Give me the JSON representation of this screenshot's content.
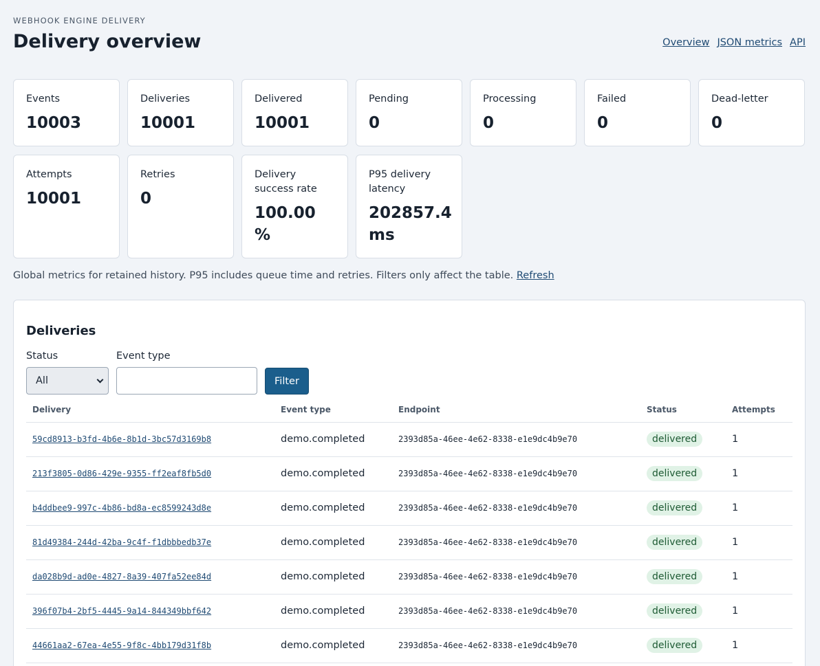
{
  "header": {
    "eyebrow": "WEBHOOK ENGINE DELIVERY",
    "title": "Delivery overview",
    "nav": [
      "Overview",
      "JSON metrics",
      "API"
    ]
  },
  "metrics": [
    {
      "label": "Events",
      "value": "10003"
    },
    {
      "label": "Deliveries",
      "value": "10001"
    },
    {
      "label": "Delivered",
      "value": "10001"
    },
    {
      "label": "Pending",
      "value": "0"
    },
    {
      "label": "Processing",
      "value": "0"
    },
    {
      "label": "Failed",
      "value": "0"
    },
    {
      "label": "Dead-letter",
      "value": "0"
    },
    {
      "label": "Attempts",
      "value": "10001"
    },
    {
      "label": "Retries",
      "value": "0"
    },
    {
      "label": "Delivery success rate",
      "value": "100.00 %"
    },
    {
      "label": "P95 delivery latency",
      "value": "202857.4 ms"
    }
  ],
  "footnote": {
    "text": "Global metrics for retained history. P95 includes queue time and retries. Filters only affect the table.",
    "refresh_label": "Refresh"
  },
  "deliveries": {
    "title": "Deliveries",
    "status_label": "Status",
    "status_value": "All",
    "event_type_label": "Event type",
    "event_type_value": "",
    "filter_label": "Filter",
    "columns": [
      "Delivery",
      "Event type",
      "Endpoint",
      "Status",
      "Attempts"
    ],
    "rows": [
      {
        "id": "59cd8913-b3fd-4b6e-8b1d-3bc57d3169b8",
        "event_type": "demo.completed",
        "endpoint": "2393d85a-46ee-4e62-8338-e1e9dc4b9e70",
        "status": "delivered",
        "attempts": "1"
      },
      {
        "id": "213f3805-0d86-429e-9355-ff2eaf8fb5d0",
        "event_type": "demo.completed",
        "endpoint": "2393d85a-46ee-4e62-8338-e1e9dc4b9e70",
        "status": "delivered",
        "attempts": "1"
      },
      {
        "id": "b4ddbee9-997c-4b86-bd8a-ec8599243d8e",
        "event_type": "demo.completed",
        "endpoint": "2393d85a-46ee-4e62-8338-e1e9dc4b9e70",
        "status": "delivered",
        "attempts": "1"
      },
      {
        "id": "81d49384-244d-42ba-9c4f-f1dbbbedb37e",
        "event_type": "demo.completed",
        "endpoint": "2393d85a-46ee-4e62-8338-e1e9dc4b9e70",
        "status": "delivered",
        "attempts": "1"
      },
      {
        "id": "da028b9d-ad0e-4827-8a39-407fa52ee84d",
        "event_type": "demo.completed",
        "endpoint": "2393d85a-46ee-4e62-8338-e1e9dc4b9e70",
        "status": "delivered",
        "attempts": "1"
      },
      {
        "id": "396f07b4-2bf5-4445-9a14-844349bbf642",
        "event_type": "demo.completed",
        "endpoint": "2393d85a-46ee-4e62-8338-e1e9dc4b9e70",
        "status": "delivered",
        "attempts": "1"
      },
      {
        "id": "44661aa2-67ea-4e55-9f8c-4bb179d31f8b",
        "event_type": "demo.completed",
        "endpoint": "2393d85a-46ee-4e62-8338-e1e9dc4b9e70",
        "status": "delivered",
        "attempts": "1"
      }
    ]
  }
}
